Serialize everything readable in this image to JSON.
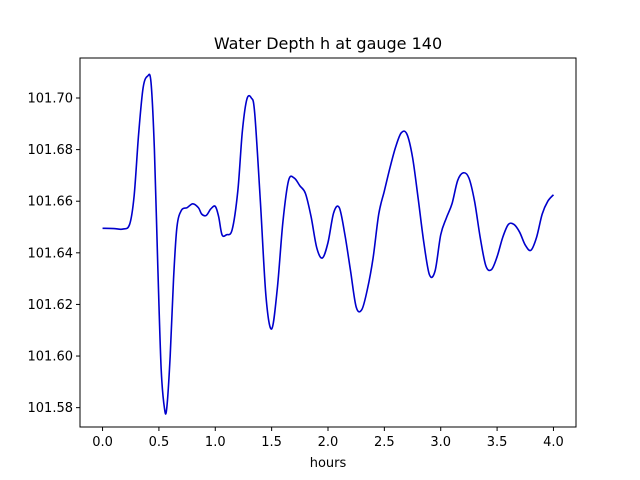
{
  "chart_data": {
    "type": "line",
    "title": "Water Depth h at gauge 140",
    "xlabel": "hours",
    "ylabel": "",
    "xlim": [
      -0.2,
      4.2
    ],
    "ylim": [
      101.5725,
      101.7155
    ],
    "xticks": [
      0.0,
      0.5,
      1.0,
      1.5,
      2.0,
      2.5,
      3.0,
      3.5,
      4.0
    ],
    "xtick_labels": [
      "0.0",
      "0.5",
      "1.0",
      "1.5",
      "2.0",
      "2.5",
      "3.0",
      "3.5",
      "4.0"
    ],
    "yticks": [
      101.58,
      101.6,
      101.62,
      101.64,
      101.66,
      101.68,
      101.7
    ],
    "ytick_labels": [
      "101.58",
      "101.60",
      "101.62",
      "101.64",
      "101.66",
      "101.68",
      "101.70"
    ],
    "grid": false,
    "line_color": "#0000cc",
    "series": [
      {
        "x": [
          0.0,
          0.1,
          0.18,
          0.24,
          0.28,
          0.32,
          0.36,
          0.4,
          0.43,
          0.46,
          0.49,
          0.52,
          0.55,
          0.57,
          0.6,
          0.63,
          0.66,
          0.7,
          0.75,
          0.8,
          0.85,
          0.88,
          0.92,
          0.96,
          1.0,
          1.03,
          1.06,
          1.1,
          1.15,
          1.2,
          1.24,
          1.28,
          1.32,
          1.35,
          1.4,
          1.45,
          1.5,
          1.55,
          1.6,
          1.65,
          1.7,
          1.75,
          1.8,
          1.85,
          1.9,
          1.95,
          2.0,
          2.05,
          2.1,
          2.15,
          2.2,
          2.25,
          2.3,
          2.35,
          2.4,
          2.45,
          2.5,
          2.55,
          2.6,
          2.65,
          2.7,
          2.75,
          2.8,
          2.85,
          2.9,
          2.95,
          3.0,
          3.05,
          3.1,
          3.15,
          3.2,
          3.25,
          3.3,
          3.35,
          3.4,
          3.45,
          3.5,
          3.55,
          3.6,
          3.65,
          3.7,
          3.75,
          3.8,
          3.85,
          3.9,
          3.95,
          4.0
        ],
        "y": [
          101.6495,
          101.6494,
          101.6492,
          101.651,
          101.662,
          101.686,
          101.704,
          101.7085,
          101.706,
          101.68,
          101.635,
          101.595,
          101.5795,
          101.58,
          101.6,
          101.63,
          101.65,
          101.6565,
          101.6575,
          101.659,
          101.6575,
          101.655,
          101.6545,
          101.657,
          101.658,
          101.654,
          101.647,
          101.647,
          101.649,
          101.664,
          101.687,
          101.6995,
          101.7,
          101.694,
          101.66,
          101.623,
          101.6105,
          101.626,
          101.652,
          101.668,
          101.669,
          101.666,
          101.663,
          101.654,
          101.642,
          101.638,
          101.644,
          101.6555,
          101.6575,
          101.647,
          101.633,
          101.619,
          101.618,
          101.626,
          101.638,
          101.655,
          101.664,
          101.673,
          101.681,
          101.6865,
          101.686,
          101.677,
          101.661,
          101.644,
          101.6315,
          101.633,
          101.647,
          101.6535,
          101.659,
          101.668,
          101.671,
          101.669,
          101.66,
          101.646,
          101.635,
          101.6335,
          101.6385,
          101.646,
          101.651,
          101.651,
          101.648,
          101.643,
          101.641,
          101.646,
          101.655,
          101.66,
          101.6625
        ]
      }
    ]
  }
}
